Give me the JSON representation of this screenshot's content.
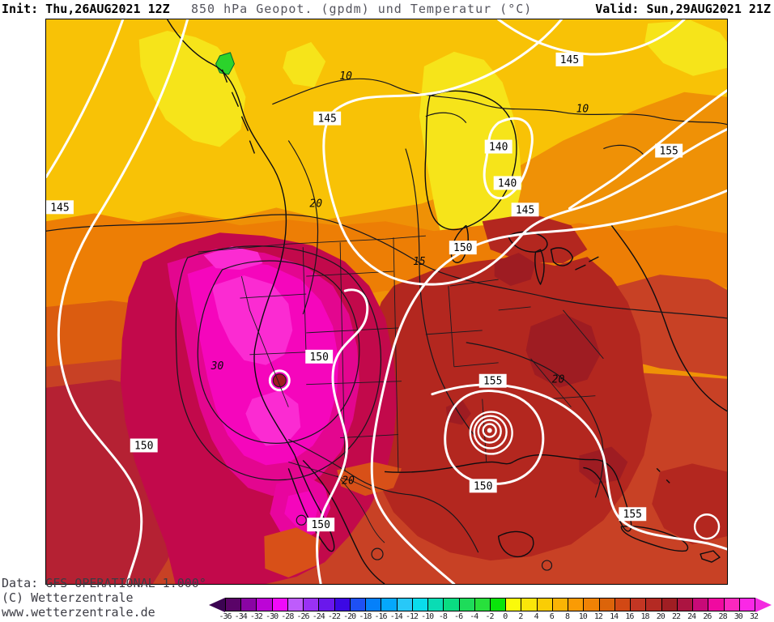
{
  "header": {
    "init_label": "Init: Thu,26AUG2021 12Z",
    "title": "850 hPa Geopot. (gpdm) und Temperatur (°C)",
    "valid_label": "Valid: Sun,29AUG2021 21Z"
  },
  "footer": {
    "data_source": "Data: GFS OPERATIONAL 1.000°",
    "copyright": "(C) Wetterzentrale",
    "website": "www.wetterzentrale.de"
  },
  "colorbar": {
    "unit": "°C",
    "tick_labels": [
      "-36",
      "-34",
      "-32",
      "-30",
      "-28",
      "-26",
      "-24",
      "-22",
      "-20",
      "-18",
      "-16",
      "-14",
      "-12",
      "-10",
      "-8",
      "-6",
      "-4",
      "-2",
      "0",
      "2",
      "4",
      "6",
      "8",
      "10",
      "12",
      "14",
      "16",
      "18",
      "20",
      "22",
      "24",
      "26",
      "28",
      "30",
      "32"
    ],
    "colors": [
      "#5A0468",
      "#8A04A4",
      "#BC05D6",
      "#F00AFA",
      "#BE5CFC",
      "#9A32F4",
      "#6A18EC",
      "#3C08E4",
      "#1E50F4",
      "#0580FA",
      "#05A8FC",
      "#28C8F8",
      "#0ADCEC",
      "#0ADCB4",
      "#0ADC82",
      "#1EDC5A",
      "#28E03C",
      "#0AE40A",
      "#FAFA0A",
      "#FAE60A",
      "#FACD05",
      "#FAB405",
      "#FA9B05",
      "#F08205",
      "#DC640A",
      "#D24814",
      "#C33623",
      "#B42A23",
      "#A01E23",
      "#AC1441",
      "#C80A78",
      "#F00AA0",
      "#FA28BE",
      "#FA28E6"
    ],
    "left_arrow_color": "#3C0452",
    "right_arrow_color": "#F32BE0"
  },
  "map": {
    "parameter": "850 hPa geopotential and temperature",
    "geopotential_unit": "gpdm",
    "geopotential_levels_shown": [
      140,
      145,
      150,
      155
    ],
    "temperature_unit": "°C",
    "temperature_levels_shown": [
      10,
      15,
      20,
      30
    ],
    "geo_labels": [
      "145",
      "145",
      "145",
      "140",
      "140",
      "145",
      "155",
      "150",
      "150",
      "155",
      "150",
      "150",
      "150",
      "155"
    ],
    "temp_labels": [
      "10",
      "10",
      "20",
      "15",
      "30",
      "20",
      "20"
    ]
  }
}
